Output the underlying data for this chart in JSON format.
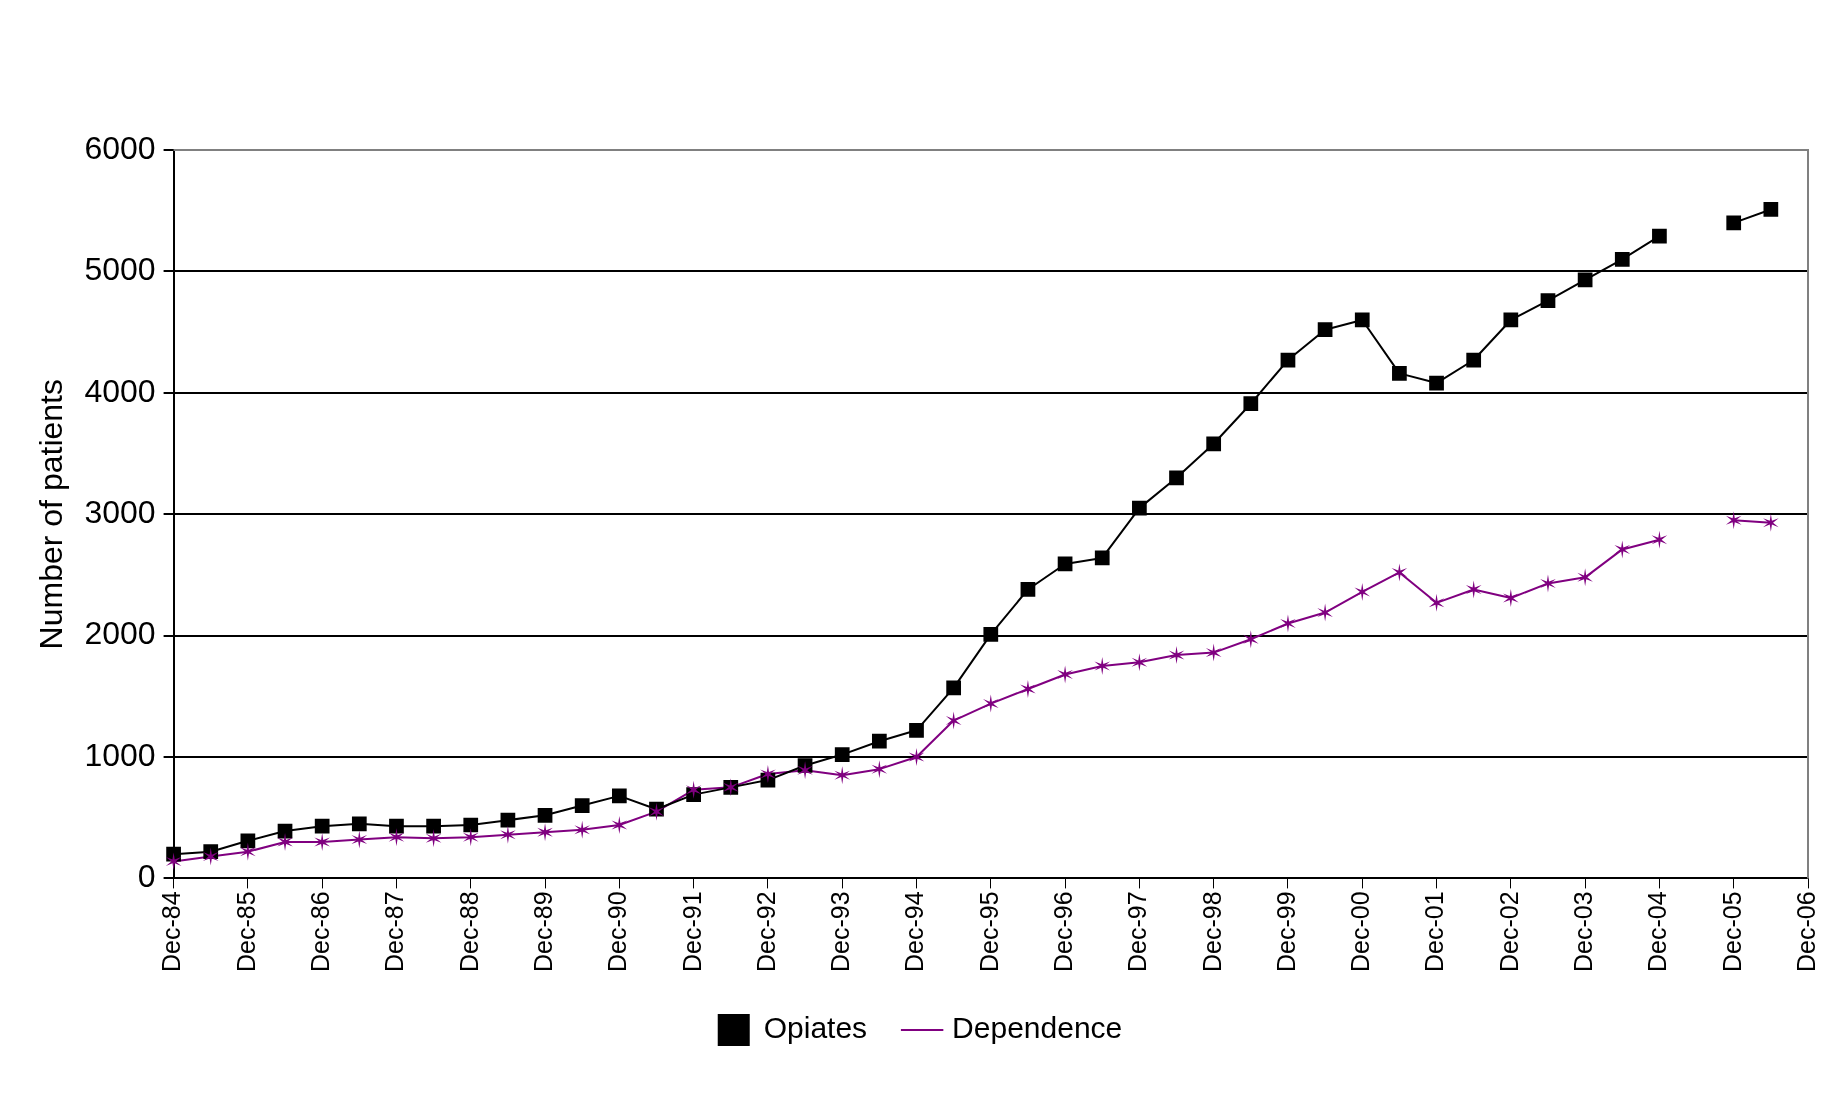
{
  "chart_data": {
    "type": "line",
    "ylabel": "Number of patients",
    "categories": [
      "Dec-84",
      null,
      "Dec-85",
      null,
      "Dec-86",
      null,
      "Dec-87",
      null,
      "Dec-88",
      null,
      "Dec-89",
      null,
      "Dec-90",
      null,
      "Dec-91",
      null,
      "Dec-92",
      null,
      "Dec-93",
      null,
      "Dec-94",
      null,
      "Dec-95",
      null,
      "Dec-96",
      null,
      "Dec-97",
      null,
      "Dec-98",
      null,
      "Dec-99",
      null,
      "Dec-00",
      null,
      "Dec-01",
      null,
      "Dec-02",
      null,
      "Dec-03",
      null,
      "Dec-04",
      null,
      "Dec-05",
      null,
      "Dec-06"
    ],
    "series": [
      {
        "name": "Opiates",
        "color": "#000000",
        "marker": "square",
        "values": [
          200,
          220,
          310,
          390,
          430,
          450,
          430,
          430,
          440,
          480,
          520,
          600,
          680,
          570,
          690,
          750,
          810,
          930,
          1020,
          1130,
          1220,
          1570,
          2010,
          2380,
          2590,
          2640,
          3050,
          3300,
          3580,
          3910,
          4270,
          4520,
          4600,
          4160,
          4080,
          4270,
          4600,
          4760,
          4930,
          5100,
          5290,
          null,
          5400,
          5510,
          null
        ]
      },
      {
        "name": "Dependence",
        "color": "#800080",
        "marker": "cross",
        "values": [
          140,
          180,
          220,
          300,
          300,
          320,
          340,
          330,
          340,
          360,
          380,
          400,
          440,
          550,
          730,
          750,
          860,
          890,
          850,
          900,
          1000,
          1300,
          1440,
          1560,
          1680,
          1750,
          1780,
          1840,
          1860,
          1970,
          2100,
          2190,
          2360,
          2520,
          2270,
          2380,
          2310,
          2430,
          2480,
          2710,
          2790,
          null,
          2950,
          2930,
          null
        ]
      }
    ],
    "ylim": [
      0,
      6000
    ],
    "yticks": [
      0,
      1000,
      2000,
      3000,
      4000,
      5000,
      6000
    ],
    "grid": "y",
    "legend": "bottom",
    "line_style": "solid"
  }
}
